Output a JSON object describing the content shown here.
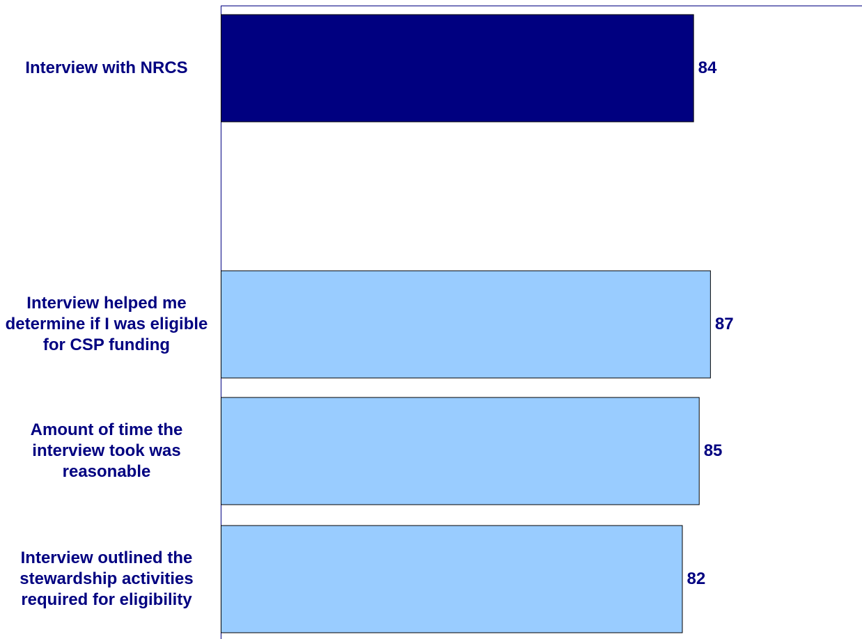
{
  "chart_data": {
    "type": "bar",
    "orientation": "horizontal",
    "title": "",
    "xlabel": "",
    "ylabel": "",
    "categories": [
      "Interview with NRCS",
      "",
      "Interview helped me determine if I was eligible for CSP funding",
      "Amount of time the interview took was reasonable",
      "Interview outlined the stewardship activities required for eligibility"
    ],
    "values": [
      84,
      null,
      87,
      85,
      82
    ],
    "value_labels": [
      "84",
      "",
      "87",
      "85",
      "82"
    ],
    "xlim": [
      0,
      114
    ],
    "grid": false,
    "legend": "none",
    "colors": {
      "summary_bar": "#000080",
      "detail_bar": "#99ccff",
      "bar_border": "#000000",
      "label_text": "#000080",
      "axis": "#000080"
    }
  }
}
